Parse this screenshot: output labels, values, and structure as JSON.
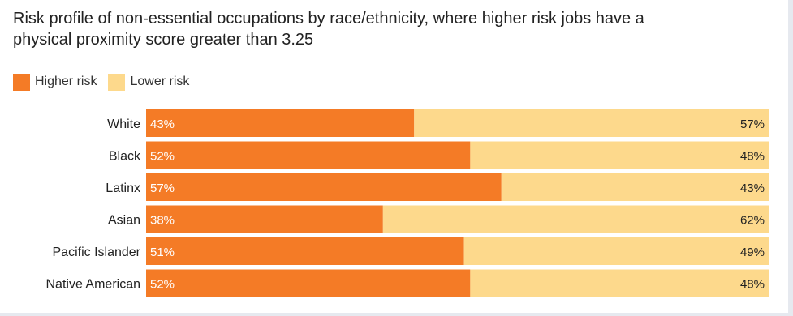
{
  "chart_data": {
    "type": "bar",
    "stacked": true,
    "orientation": "horizontal",
    "title": "Risk profile of non-essential occupations by race/ethnicity, where higher risk jobs have a physical proximity score greater than 3.25",
    "categories": [
      "White",
      "Black",
      "Latinx",
      "Asian",
      "Pacific Islander",
      "Native American"
    ],
    "series": [
      {
        "name": "Higher risk",
        "color": "#f47b26",
        "values": [
          43,
          52,
          57,
          38,
          51,
          52
        ]
      },
      {
        "name": "Lower risk",
        "color": "#fdd98c",
        "values": [
          57,
          48,
          43,
          62,
          49,
          48
        ]
      }
    ],
    "value_suffix": "%",
    "xlim": [
      0,
      100
    ],
    "legend_position": "top-left",
    "grid": false
  },
  "title_line1": "Risk profile of non-essential occupations by race/ethnicity, where higher risk jobs have a",
  "title_line2": "physical proximity score greater than 3.25",
  "legend": {
    "higher_label": "Higher risk",
    "lower_label": "Lower risk"
  }
}
